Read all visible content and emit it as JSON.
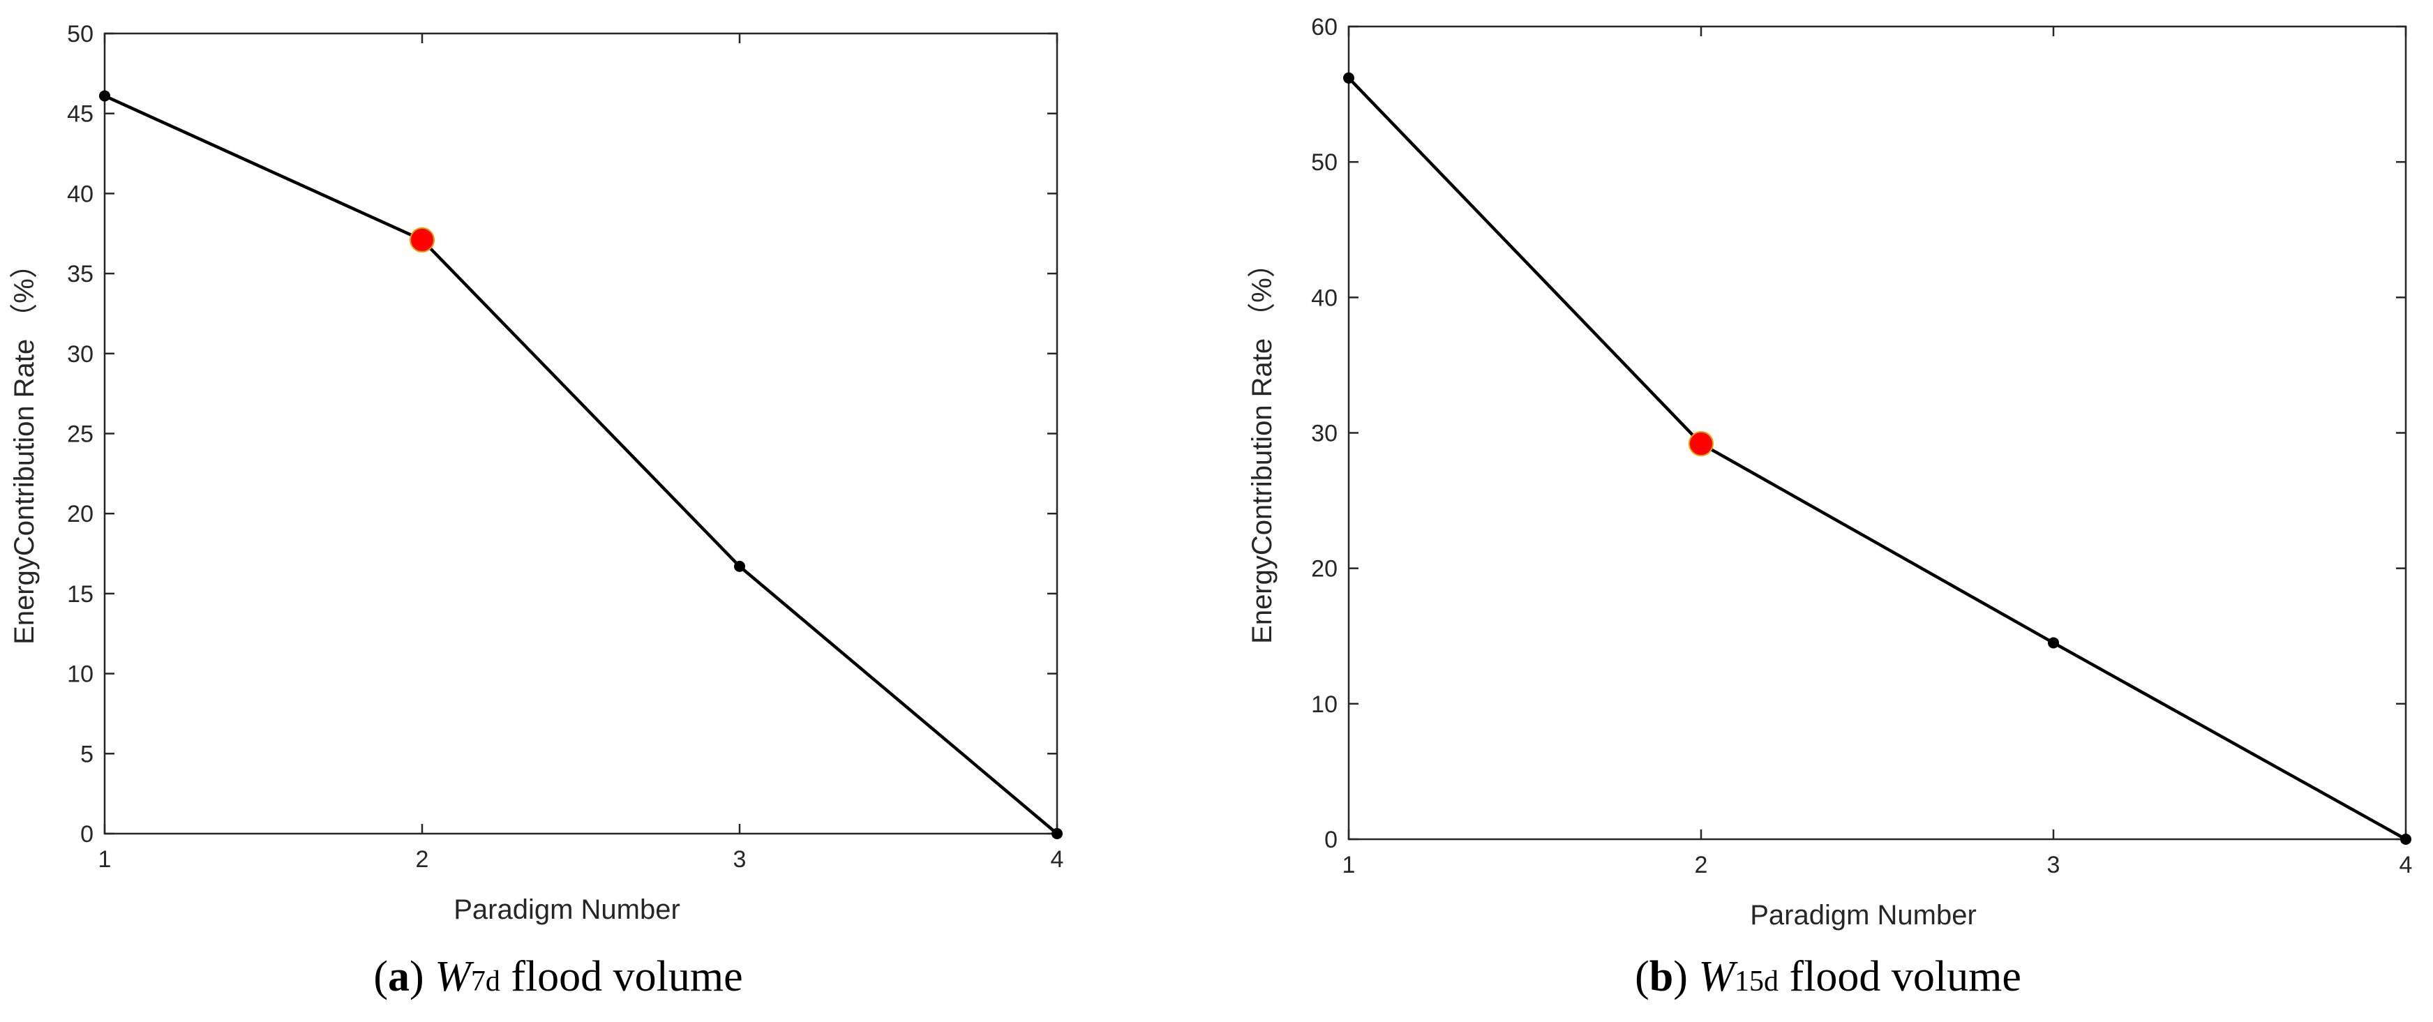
{
  "chart_data": [
    {
      "type": "line",
      "xlabel": "Paradigm Number",
      "ylabel": "EnergyContribution Rate （%）",
      "x": [
        1,
        2,
        3,
        4
      ],
      "xticks": [
        "1",
        "2",
        "3",
        "4"
      ],
      "xlim": [
        1,
        4
      ],
      "ylim": [
        0,
        50
      ],
      "yticks": [
        "0",
        "5",
        "10",
        "15",
        "20",
        "25",
        "30",
        "35",
        "40",
        "45",
        "50"
      ],
      "series": [
        {
          "values": [
            46.1,
            37.1,
            16.7,
            0
          ]
        }
      ],
      "highlight": {
        "x": 2,
        "y": 37.1,
        "color": "#ff0000"
      },
      "line_color": "#000000",
      "grid": false,
      "caption": {
        "letter": "a",
        "var": "W",
        "sub": "7d",
        "text": " flood volume"
      }
    },
    {
      "type": "line",
      "xlabel": "Paradigm Number",
      "ylabel": "EnergyContribution Rate （%）",
      "x": [
        1,
        2,
        3,
        4
      ],
      "xticks": [
        "1",
        "2",
        "3",
        "4"
      ],
      "xlim": [
        1,
        4
      ],
      "ylim": [
        0,
        60
      ],
      "yticks": [
        "0",
        "10",
        "20",
        "30",
        "40",
        "50",
        "60"
      ],
      "series": [
        {
          "values": [
            56.2,
            29.2,
            14.5,
            0
          ]
        }
      ],
      "highlight": {
        "x": 2,
        "y": 29.2,
        "color": "#ff0000"
      },
      "line_color": "#000000",
      "grid": false,
      "caption": {
        "letter": "b",
        "var": "W",
        "sub": "15d",
        "text": " flood volume"
      }
    }
  ]
}
